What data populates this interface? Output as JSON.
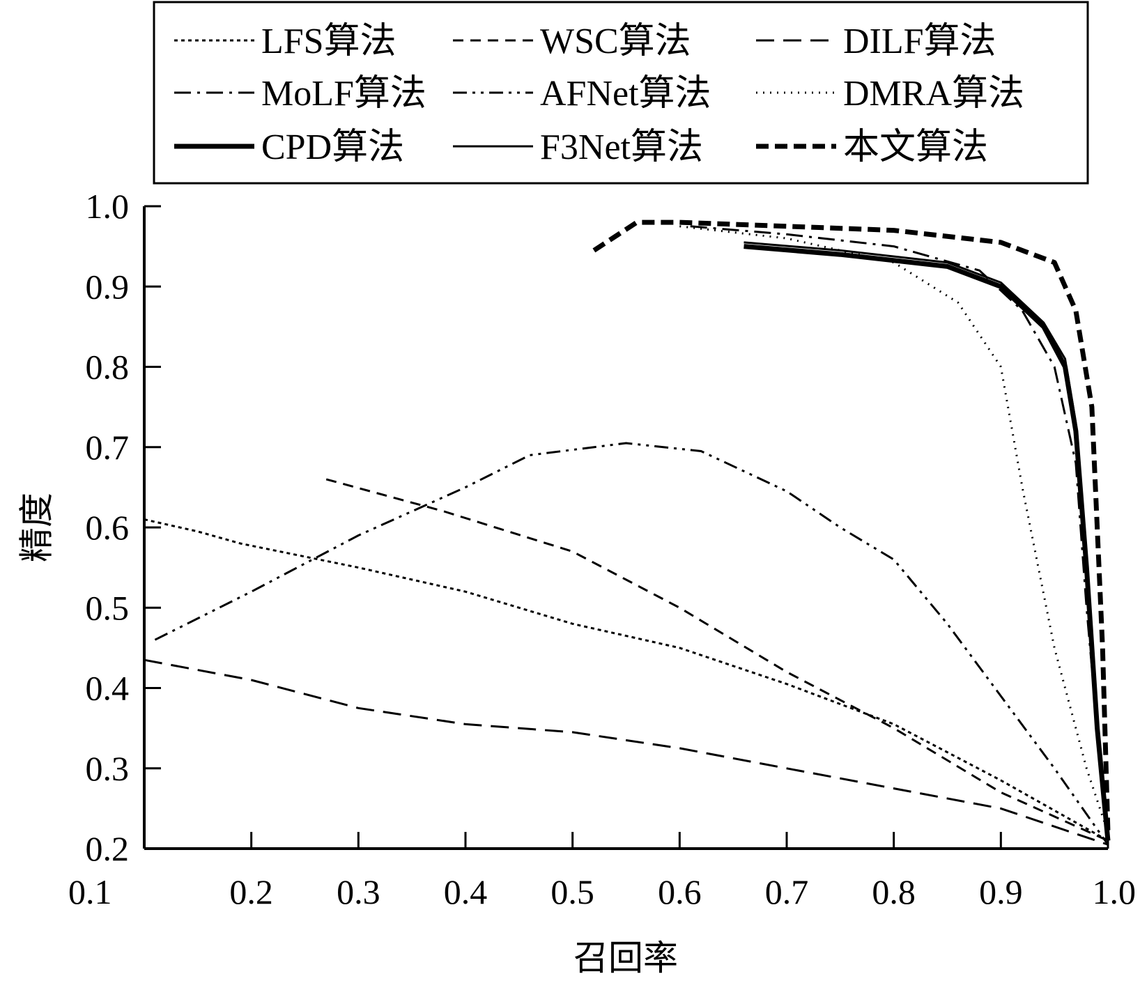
{
  "chart_data": {
    "type": "line",
    "xlabel": "召回率",
    "ylabel": "精度",
    "xlim": [
      0.1,
      1.0
    ],
    "ylim": [
      0.2,
      1.0
    ],
    "x_ticks": [
      "0.1",
      "0.2",
      "0.3",
      "0.4",
      "0.5",
      "0.6",
      "0.7",
      "0.8",
      "0.9",
      "1.0"
    ],
    "y_ticks": [
      "0.2",
      "0.3",
      "0.4",
      "0.5",
      "0.6",
      "0.7",
      "0.8",
      "0.9",
      "1.0"
    ],
    "grid": false,
    "legend_position": "top",
    "series": [
      {
        "name": "LFS算法",
        "style": "dotted",
        "width": "thin",
        "points": [
          [
            0.1,
            0.61
          ],
          [
            0.15,
            0.595
          ],
          [
            0.19,
            0.58
          ],
          [
            0.3,
            0.55
          ],
          [
            0.4,
            0.52
          ],
          [
            0.5,
            0.48
          ],
          [
            0.6,
            0.45
          ],
          [
            0.7,
            0.405
          ],
          [
            0.8,
            0.355
          ],
          [
            0.9,
            0.285
          ],
          [
            1.0,
            0.21
          ]
        ]
      },
      {
        "name": "WSC算法",
        "style": "dashed",
        "width": "thin",
        "points": [
          [
            0.27,
            0.66
          ],
          [
            0.38,
            0.62
          ],
          [
            0.5,
            0.57
          ],
          [
            0.6,
            0.5
          ],
          [
            0.7,
            0.42
          ],
          [
            0.8,
            0.35
          ],
          [
            0.9,
            0.27
          ],
          [
            1.0,
            0.21
          ]
        ]
      },
      {
        "name": "DILF算法",
        "style": "longdash",
        "width": "thin",
        "points": [
          [
            0.1,
            0.435
          ],
          [
            0.2,
            0.41
          ],
          [
            0.3,
            0.375
          ],
          [
            0.4,
            0.355
          ],
          [
            0.5,
            0.345
          ],
          [
            0.6,
            0.325
          ],
          [
            0.7,
            0.3
          ],
          [
            0.8,
            0.275
          ],
          [
            0.9,
            0.25
          ],
          [
            1.0,
            0.205
          ]
        ]
      },
      {
        "name": "MoLF算法",
        "style": "dashdot",
        "width": "thin",
        "points": [
          [
            0.61,
            0.975
          ],
          [
            0.7,
            0.965
          ],
          [
            0.8,
            0.95
          ],
          [
            0.88,
            0.92
          ],
          [
            0.92,
            0.87
          ],
          [
            0.95,
            0.8
          ],
          [
            0.97,
            0.68
          ],
          [
            0.98,
            0.5
          ],
          [
            0.99,
            0.35
          ],
          [
            1.0,
            0.21
          ]
        ]
      },
      {
        "name": "AFNet算法",
        "style": "dashdotdot",
        "width": "thin",
        "points": [
          [
            0.11,
            0.46
          ],
          [
            0.2,
            0.52
          ],
          [
            0.3,
            0.59
          ],
          [
            0.4,
            0.65
          ],
          [
            0.46,
            0.69
          ],
          [
            0.55,
            0.705
          ],
          [
            0.62,
            0.695
          ],
          [
            0.7,
            0.645
          ],
          [
            0.75,
            0.6
          ],
          [
            0.8,
            0.56
          ],
          [
            0.85,
            0.48
          ],
          [
            0.9,
            0.39
          ],
          [
            0.95,
            0.3
          ],
          [
            1.0,
            0.205
          ]
        ]
      },
      {
        "name": "DMRA算法",
        "style": "finedotted",
        "width": "thin",
        "points": [
          [
            0.6,
            0.975
          ],
          [
            0.7,
            0.96
          ],
          [
            0.8,
            0.93
          ],
          [
            0.86,
            0.88
          ],
          [
            0.9,
            0.8
          ],
          [
            0.92,
            0.65
          ],
          [
            0.95,
            0.45
          ],
          [
            0.98,
            0.3
          ],
          [
            1.0,
            0.22
          ]
        ]
      },
      {
        "name": "CPD算法",
        "style": "solid",
        "width": "thick",
        "points": [
          [
            0.66,
            0.95
          ],
          [
            0.75,
            0.94
          ],
          [
            0.85,
            0.925
          ],
          [
            0.9,
            0.9
          ],
          [
            0.94,
            0.85
          ],
          [
            0.96,
            0.8
          ],
          [
            0.97,
            0.72
          ],
          [
            0.98,
            0.55
          ],
          [
            0.99,
            0.35
          ],
          [
            1.0,
            0.21
          ]
        ]
      },
      {
        "name": "F3Net算法",
        "style": "solid",
        "width": "thin",
        "points": [
          [
            0.66,
            0.955
          ],
          [
            0.75,
            0.945
          ],
          [
            0.85,
            0.93
          ],
          [
            0.9,
            0.905
          ],
          [
            0.94,
            0.855
          ],
          [
            0.96,
            0.81
          ],
          [
            0.97,
            0.73
          ],
          [
            0.98,
            0.56
          ],
          [
            0.99,
            0.36
          ],
          [
            1.0,
            0.215
          ]
        ]
      },
      {
        "name": "本文算法",
        "style": "dashed",
        "width": "thick",
        "points": [
          [
            0.52,
            0.945
          ],
          [
            0.56,
            0.98
          ],
          [
            0.6,
            0.98
          ],
          [
            0.7,
            0.975
          ],
          [
            0.8,
            0.97
          ],
          [
            0.9,
            0.955
          ],
          [
            0.95,
            0.93
          ],
          [
            0.97,
            0.87
          ],
          [
            0.985,
            0.75
          ],
          [
            0.99,
            0.6
          ],
          [
            0.995,
            0.45
          ],
          [
            1.0,
            0.22
          ]
        ]
      }
    ]
  }
}
